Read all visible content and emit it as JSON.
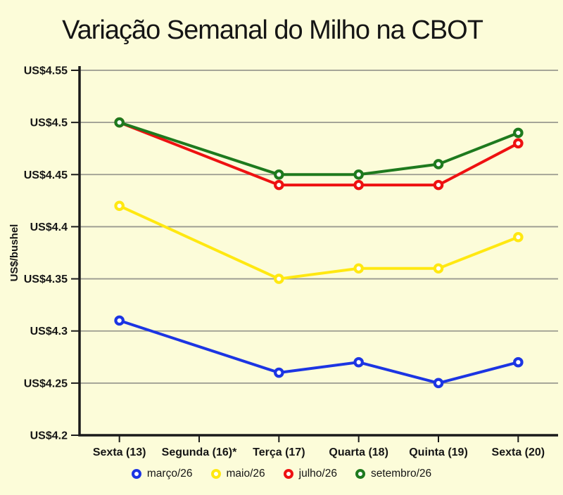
{
  "title": "Variação Semanal do Milho na CBOT",
  "colors": {
    "background": "#FCFCD9",
    "text": "#151515",
    "grid": "#9A9A8F",
    "axis": "#1A1A1A",
    "marker_fill": "#FFFFFF"
  },
  "chart_data": {
    "type": "line",
    "title": "Variação Semanal do Milho na CBOT",
    "xlabel": "",
    "ylabel": "US$/bushel",
    "ylim": [
      4.2,
      4.55
    ],
    "ytick_step": 0.05,
    "ytick_prefix": "US$",
    "ytick_labels": [
      "US$4.55",
      "US$4.5",
      "US$4.45",
      "US$4.4",
      "US$4.35",
      "US$4.3",
      "US$4.25",
      "US$4.2"
    ],
    "grid": true,
    "legend_position": "bottom",
    "categories": [
      "Sexta (13)",
      "Segunda (16)*",
      "Terça (17)",
      "Quarta (18)",
      "Quinta (19)",
      "Sexta (20)"
    ],
    "series": [
      {
        "name": "março/26",
        "color": "#1C35E3",
        "values": [
          4.31,
          null,
          4.26,
          4.27,
          4.25,
          4.27
        ]
      },
      {
        "name": "maio/26",
        "color": "#FFE811",
        "values": [
          4.42,
          null,
          4.35,
          4.36,
          4.36,
          4.39
        ]
      },
      {
        "name": "julho/26",
        "color": "#EE1111",
        "values": [
          4.5,
          null,
          4.44,
          4.44,
          4.44,
          4.48
        ]
      },
      {
        "name": "setembro/26",
        "color": "#1E7A1E",
        "values": [
          4.5,
          null,
          4.45,
          4.45,
          4.46,
          4.49
        ]
      }
    ]
  }
}
